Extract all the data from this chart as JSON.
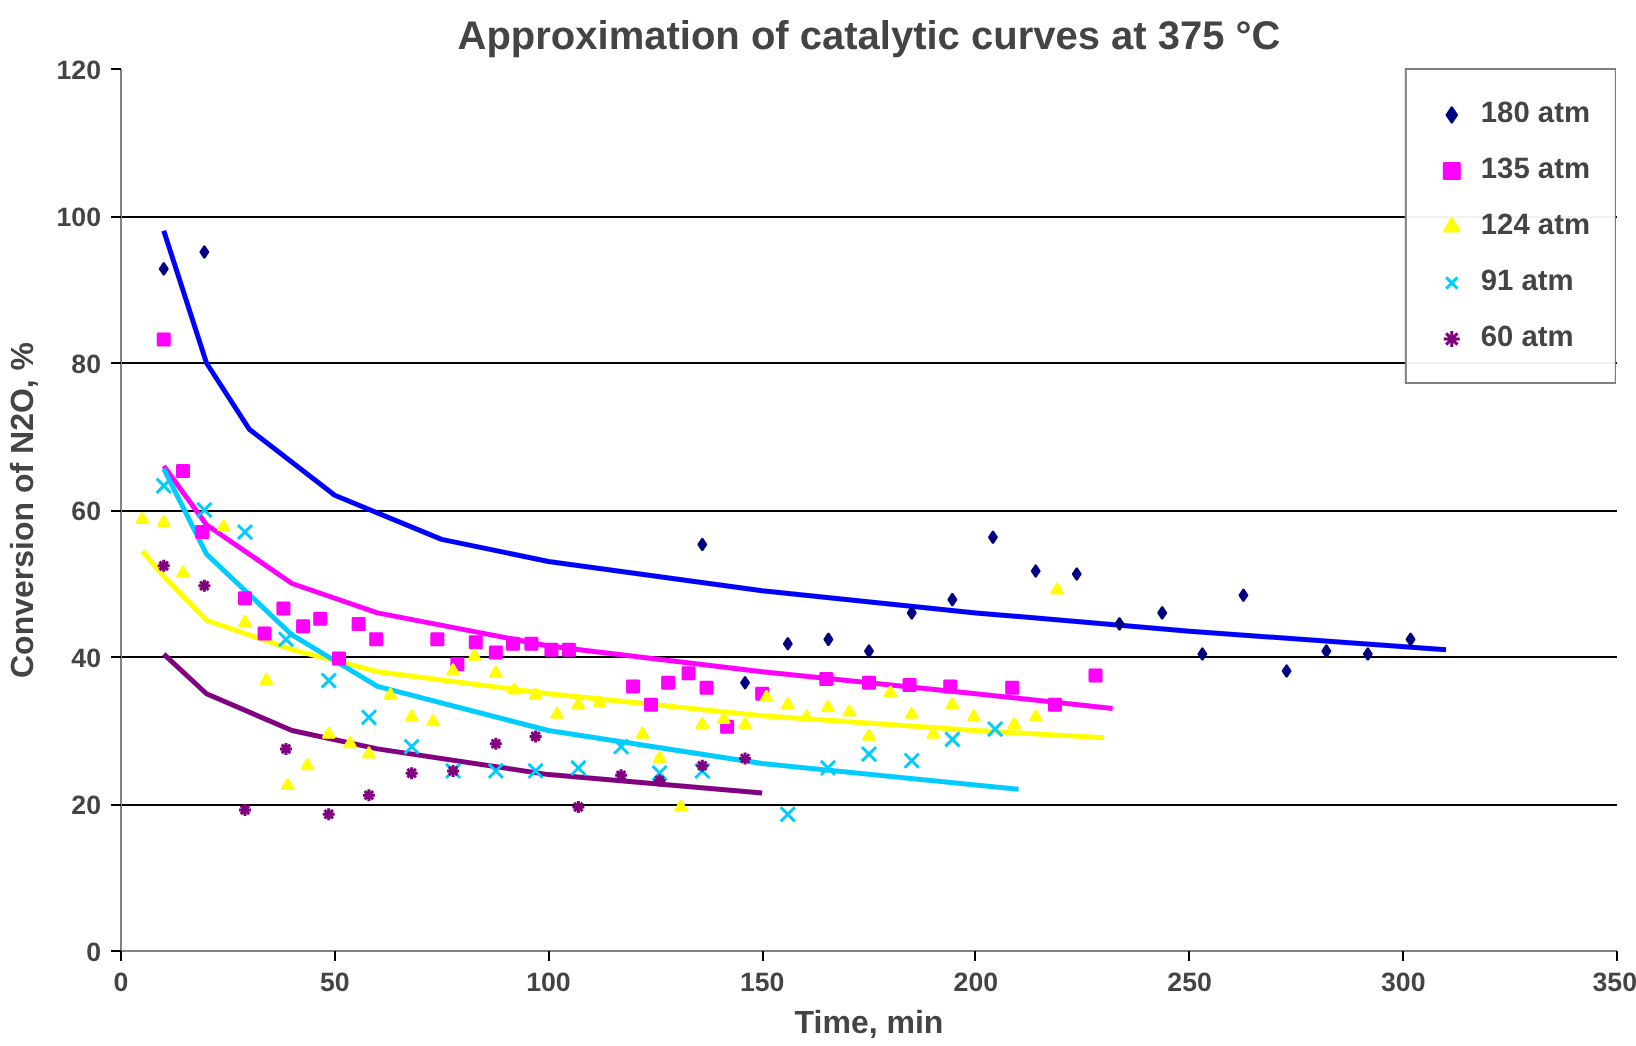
{
  "chart_data": {
    "type": "scatter",
    "title": "Approximation of catalytic curves at 375 °C",
    "xlabel": "Time, min",
    "ylabel": "Conversion of N2O, %",
    "xlim": [
      0,
      350
    ],
    "xticks": [
      0,
      50,
      100,
      150,
      200,
      250,
      300,
      350
    ],
    "ylim": [
      0,
      120
    ],
    "yticks": [
      0,
      20,
      40,
      60,
      80,
      100,
      120
    ],
    "grid": "y",
    "legend": "top right",
    "series": [
      {
        "name": "180 atm",
        "color": "#000080",
        "marker": "diamond",
        "x": [
          10,
          19.5,
          136,
          146,
          156,
          165.5,
          175,
          185,
          194.5,
          204,
          214,
          223.6,
          233.6,
          243.6,
          253,
          262.6,
          272.7,
          282,
          291.7,
          301.7
        ],
        "values": [
          92.8,
          95.1,
          55.3,
          36.5,
          41.8,
          42.4,
          40.8,
          46,
          47.8,
          56.3,
          51.7,
          51.3,
          44.5,
          46,
          40.4,
          48.4,
          38.1,
          40.8,
          40.4,
          42.4
        ]
      },
      {
        "name": "135 atm",
        "color": "#ff00ff",
        "marker": "square",
        "x": [
          10,
          14.5,
          19,
          29,
          33.6,
          38,
          42.6,
          46.6,
          51,
          55.6,
          59.7,
          74,
          78.7,
          83,
          87.7,
          91.7,
          96,
          100.7,
          104.8,
          119.8,
          124,
          128,
          132.8,
          137,
          141.8,
          150,
          165,
          175,
          184.5,
          194,
          208.5,
          218.5,
          228
        ],
        "values": [
          83.2,
          65.3,
          57,
          48,
          43.2,
          46.6,
          44.2,
          45.2,
          39.8,
          44.5,
          42.4,
          42.4,
          39,
          42,
          40.6,
          41.8,
          41.8,
          41,
          41,
          36,
          33.5,
          36.5,
          37.8,
          35.8,
          30.5,
          35,
          37,
          36.5,
          36.2,
          36,
          35.8,
          33.5,
          37.5
        ]
      },
      {
        "name": "124 atm",
        "color": "#ffff00",
        "marker": "triangle",
        "x": [
          5,
          10,
          14.5,
          24,
          29,
          34,
          39,
          43.6,
          48.6,
          53.6,
          58,
          63,
          68,
          73,
          77.7,
          82.7,
          87.7,
          92,
          97,
          102,
          107,
          112,
          122,
          126,
          131,
          136,
          141,
          146,
          151,
          156,
          160.4,
          165.4,
          170.4,
          175,
          180,
          185,
          190,
          194.5,
          199.5,
          209,
          214,
          219
        ],
        "values": [
          58.7,
          58.3,
          51.4,
          57.7,
          44.7,
          36.8,
          22.5,
          25.2,
          29.5,
          28.2,
          26.8,
          34.8,
          31.8,
          31.2,
          38.1,
          40.1,
          37.8,
          35.5,
          34.8,
          32.2,
          33.5,
          33.8,
          29.5,
          26.2,
          19.6,
          30.8,
          31.5,
          30.8,
          34.5,
          33.5,
          31.8,
          33.1,
          32.5,
          29.2,
          35.1,
          32.2,
          29.5,
          33.5,
          31.8,
          30.8,
          31.8,
          49.1
        ]
      },
      {
        "name": "91 atm",
        "color": "#00ccff",
        "marker": "x",
        "x": [
          10,
          19.5,
          29,
          38.6,
          48.6,
          58,
          68,
          77.7,
          87.7,
          97,
          107,
          117,
          126,
          136,
          156,
          165.4,
          175,
          185,
          194.5,
          204.5
        ],
        "values": [
          63.3,
          60,
          57,
          42.4,
          36.8,
          31.8,
          27.8,
          24.5,
          24.5,
          24.5,
          24.9,
          27.8,
          24.2,
          24.5,
          18.6,
          24.9,
          26.8,
          25.9,
          28.8,
          30.2
        ]
      },
      {
        "name": "60 atm",
        "color": "#800080",
        "marker": "cross",
        "x": [
          10,
          19.5,
          29,
          38.6,
          48.6,
          58,
          68,
          77.7,
          87.7,
          97,
          107,
          117,
          126,
          136,
          146
        ],
        "values": [
          52.4,
          49.7,
          19.2,
          27.5,
          18.6,
          21.2,
          24.2,
          24.5,
          28.2,
          29.2,
          19.6,
          23.9,
          23.2,
          25.2,
          26.2
        ]
      },
      {
        "type": "line",
        "color": "#0000ff",
        "x": [
          10,
          20,
          30,
          50,
          75,
          100,
          150,
          200,
          250,
          310
        ],
        "values": [
          98,
          80,
          71,
          62,
          56,
          53,
          49,
          46,
          43.5,
          41
        ]
      },
      {
        "type": "line",
        "color": "#ff00ff",
        "x": [
          10,
          20,
          40,
          60,
          100,
          150,
          200,
          232
        ],
        "values": [
          66,
          58,
          50,
          46,
          41.5,
          38,
          35,
          33
        ]
      },
      {
        "type": "line",
        "color": "#ffff00",
        "x": [
          5,
          10,
          20,
          40,
          60,
          100,
          150,
          200,
          230
        ],
        "values": [
          54.4,
          51,
          45,
          41,
          38,
          35,
          32,
          30,
          29
        ]
      },
      {
        "type": "line",
        "color": "#00ccff",
        "x": [
          10,
          20,
          40,
          60,
          100,
          150,
          210
        ],
        "values": [
          65.6,
          54,
          43,
          36,
          30,
          25.5,
          22
        ]
      },
      {
        "type": "line",
        "color": "#800080",
        "x": [
          10,
          20,
          40,
          60,
          100,
          150
        ],
        "values": [
          40.4,
          35,
          30,
          27.5,
          24,
          21.5
        ]
      }
    ]
  }
}
